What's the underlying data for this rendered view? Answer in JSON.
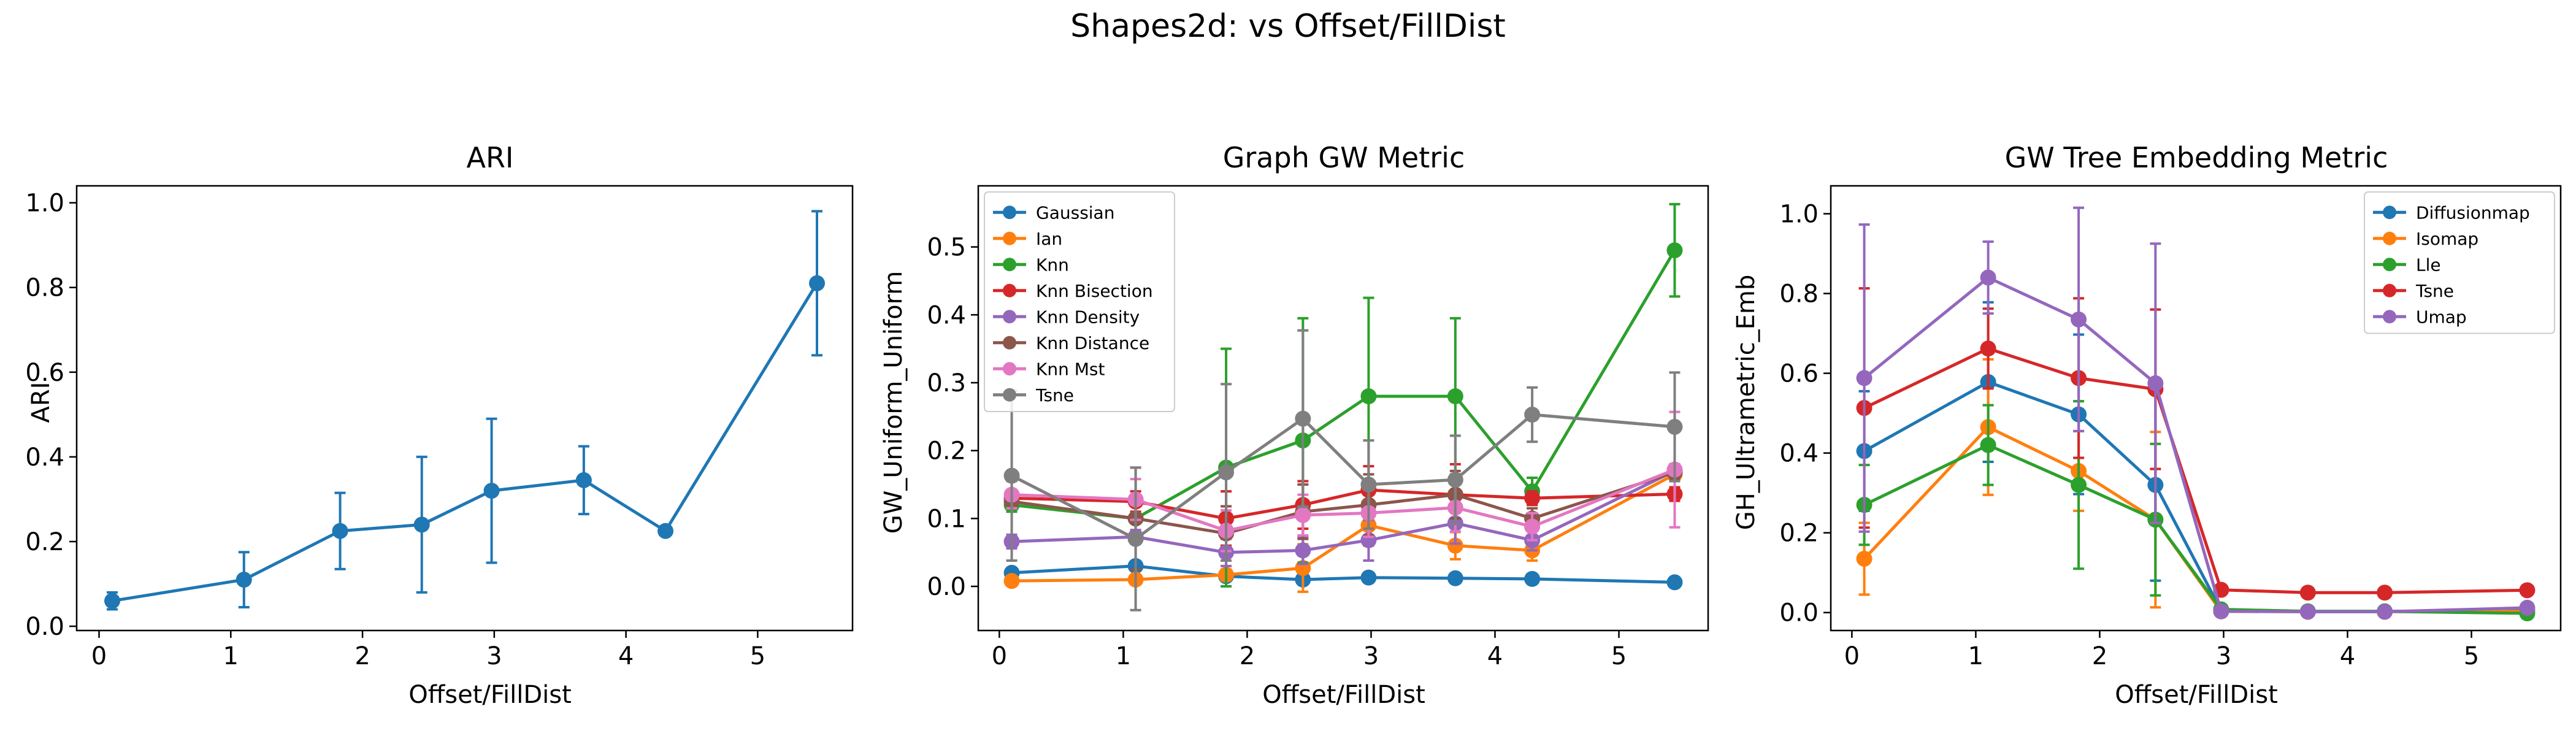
{
  "figure": {
    "suptitle": "Shapes2d: vs Offset/FillDist"
  },
  "chart_data": [
    {
      "type": "line",
      "title": "ARI",
      "xlabel": "Offset/FillDist",
      "ylabel": "ARI",
      "xlim": [
        -0.17,
        5.72
      ],
      "ylim": [
        -0.01,
        1.04
      ],
      "xticks": [
        0,
        1,
        2,
        3,
        4,
        5
      ],
      "yticks": [
        0.0,
        0.2,
        0.4,
        0.6,
        0.8,
        1.0
      ],
      "legend": null,
      "series": [
        {
          "color": "#1f77b4",
          "x": [
            0.1,
            1.1,
            1.83,
            2.45,
            2.98,
            3.68,
            4.3,
            5.45
          ],
          "y": [
            0.06,
            0.11,
            0.225,
            0.24,
            0.32,
            0.345,
            0.225,
            0.81
          ],
          "err": [
            0.02,
            0.065,
            0.09,
            0.16,
            0.17,
            0.08,
            0.01,
            0.17
          ]
        }
      ]
    },
    {
      "type": "line",
      "title": "Graph GW Metric",
      "xlabel": "Offset/FillDist",
      "ylabel": "GW_Uniform_Uniform",
      "xlim": [
        -0.17,
        5.72
      ],
      "ylim": [
        -0.065,
        0.59
      ],
      "xticks": [
        0,
        1,
        2,
        3,
        4,
        5
      ],
      "yticks": [
        0.0,
        0.1,
        0.2,
        0.3,
        0.4,
        0.5
      ],
      "legend": "top-left",
      "series": [
        {
          "name": "Gaussian",
          "color": "#1f77b4",
          "x": [
            0.1,
            1.1,
            1.83,
            2.45,
            2.98,
            3.68,
            4.3,
            5.45
          ],
          "y": [
            0.02,
            0.03,
            0.015,
            0.01,
            0.013,
            0.012,
            0.011,
            0.006
          ],
          "err": [
            0.005,
            0.005,
            0.005,
            0.005,
            0.004,
            0.004,
            0.004,
            0.003
          ]
        },
        {
          "name": "Ian",
          "color": "#ff7f0e",
          "x": [
            0.1,
            1.1,
            1.83,
            2.45,
            2.98,
            3.68,
            4.3,
            5.45
          ],
          "y": [
            0.008,
            0.01,
            0.017,
            0.027,
            0.09,
            0.06,
            0.053,
            0.165
          ],
          "err": [
            0.004,
            0.005,
            0.008,
            0.035,
            0.03,
            0.02,
            0.015,
            0.01
          ]
        },
        {
          "name": "Knn",
          "color": "#2ca02c",
          "x": [
            0.1,
            1.1,
            1.83,
            2.45,
            2.98,
            3.68,
            4.3,
            5.45
          ],
          "y": [
            0.12,
            0.1,
            0.175,
            0.215,
            0.28,
            0.28,
            0.14,
            0.495
          ],
          "err": [
            0.01,
            0.02,
            0.175,
            0.18,
            0.145,
            0.115,
            0.02,
            0.068
          ]
        },
        {
          "name": "Knn Bisection",
          "color": "#d62728",
          "x": [
            0.1,
            1.1,
            1.83,
            2.45,
            2.98,
            3.68,
            4.3,
            5.45
          ],
          "y": [
            0.13,
            0.125,
            0.1,
            0.12,
            0.142,
            0.135,
            0.13,
            0.136
          ],
          "err": [
            0.01,
            0.015,
            0.04,
            0.035,
            0.035,
            0.045,
            0.01,
            0.01
          ]
        },
        {
          "name": "Knn Density",
          "color": "#9467bd",
          "x": [
            0.1,
            1.1,
            1.83,
            2.45,
            2.98,
            3.68,
            4.3,
            5.45
          ],
          "y": [
            0.066,
            0.073,
            0.05,
            0.053,
            0.068,
            0.093,
            0.068,
            0.17
          ],
          "err": [
            0.01,
            0.01,
            0.02,
            0.02,
            0.03,
            0.03,
            0.015,
            0.01
          ]
        },
        {
          "name": "Knn Distance",
          "color": "#8c564b",
          "x": [
            0.1,
            1.1,
            1.83,
            2.45,
            2.98,
            3.68,
            4.3,
            5.45
          ],
          "y": [
            0.125,
            0.1,
            0.078,
            0.11,
            0.12,
            0.135,
            0.1,
            0.168
          ],
          "err": [
            0.01,
            0.075,
            0.04,
            0.04,
            0.045,
            0.035,
            0.015,
            0.01
          ]
        },
        {
          "name": "Knn Mst",
          "color": "#e377c2",
          "x": [
            0.1,
            1.1,
            1.83,
            2.45,
            2.98,
            3.68,
            4.3,
            5.45
          ],
          "y": [
            0.135,
            0.128,
            0.082,
            0.105,
            0.108,
            0.116,
            0.088,
            0.172
          ],
          "err": [
            0.02,
            0.03,
            0.03,
            0.03,
            0.035,
            0.035,
            0.02,
            0.085
          ]
        },
        {
          "name": "Tsne",
          "color": "#7f7f7f",
          "x": [
            0.1,
            1.1,
            1.83,
            2.45,
            2.98,
            3.68,
            4.3,
            5.45
          ],
          "y": [
            0.163,
            0.07,
            0.168,
            0.247,
            0.15,
            0.157,
            0.253,
            0.235
          ],
          "err": [
            0.125,
            0.105,
            0.13,
            0.13,
            0.065,
            0.065,
            0.04,
            0.08
          ]
        }
      ]
    },
    {
      "type": "line",
      "title": "GW Tree Embedding Metric",
      "xlabel": "Offset/FillDist",
      "ylabel": "GH_Ultrametric_Emb",
      "xlim": [
        -0.17,
        5.72
      ],
      "ylim": [
        -0.045,
        1.07
      ],
      "xticks": [
        0,
        1,
        2,
        3,
        4,
        5
      ],
      "yticks": [
        0.0,
        0.2,
        0.4,
        0.6,
        0.8,
        1.0
      ],
      "legend": "top-right",
      "series": [
        {
          "name": "Diffusionmap",
          "color": "#1f77b4",
          "x": [
            0.1,
            1.1,
            1.83,
            2.45,
            2.98,
            3.68,
            4.3,
            5.45
          ],
          "y": [
            0.405,
            0.578,
            0.497,
            0.32,
            0.005,
            0.003,
            0.003,
            0.006
          ],
          "err": [
            0.15,
            0.2,
            0.2,
            0.24,
            0.005,
            0.003,
            0.003,
            0.003
          ]
        },
        {
          "name": "Isomap",
          "color": "#ff7f0e",
          "x": [
            0.1,
            1.1,
            1.83,
            2.45,
            2.98,
            3.68,
            4.3,
            5.45
          ],
          "y": [
            0.135,
            0.465,
            0.355,
            0.233,
            0.003,
            0.002,
            0.002,
            0.003
          ],
          "err": [
            0.09,
            0.17,
            0.1,
            0.22,
            0.003,
            0.002,
            0.002,
            0.002
          ]
        },
        {
          "name": "Lle",
          "color": "#2ca02c",
          "x": [
            0.1,
            1.1,
            1.83,
            2.45,
            2.98,
            3.68,
            4.3,
            5.45
          ],
          "y": [
            0.27,
            0.42,
            0.32,
            0.233,
            0.008,
            0.003,
            0.003,
            -0.002
          ],
          "err": [
            0.1,
            0.1,
            0.21,
            0.19,
            0.005,
            0.003,
            0.003,
            0.003
          ]
        },
        {
          "name": "Tsne",
          "color": "#d62728",
          "x": [
            0.1,
            1.1,
            1.83,
            2.45,
            2.98,
            3.68,
            4.3,
            5.45
          ],
          "y": [
            0.513,
            0.662,
            0.588,
            0.56,
            0.057,
            0.05,
            0.05,
            0.056
          ],
          "err": [
            0.3,
            0.1,
            0.2,
            0.2,
            0.005,
            0.005,
            0.005,
            0.005
          ]
        },
        {
          "name": "Umap",
          "color": "#9467bd",
          "x": [
            0.1,
            1.1,
            1.83,
            2.45,
            2.98,
            3.68,
            4.3,
            5.45
          ],
          "y": [
            0.588,
            0.84,
            0.735,
            0.575,
            0.003,
            0.002,
            0.002,
            0.012
          ],
          "err": [
            0.385,
            0.09,
            0.28,
            0.35,
            0.003,
            0.002,
            0.002,
            0.005
          ]
        }
      ]
    }
  ]
}
